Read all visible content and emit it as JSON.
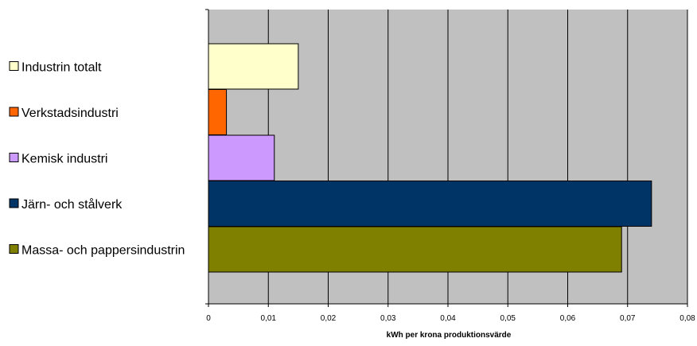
{
  "chart_data": {
    "type": "bar",
    "orientation": "horizontal",
    "xlabel": "kWh per krona produktionsvärde",
    "ylabel": "",
    "xlim": [
      0,
      0.08
    ],
    "x_ticks": [
      "0",
      "0,01",
      "0,02",
      "0,03",
      "0,04",
      "0,05",
      "0,06",
      "0,07",
      "0,08"
    ],
    "grid": true,
    "plot_background": "#c0c0c0",
    "legend_position": "left",
    "categories_top_to_bottom": [
      "Industrin totalt",
      "Verkstadsindustri",
      "Kemisk industri",
      "Järn- och stålverk",
      "Massa- och pappersindustrin"
    ],
    "series": [
      {
        "category": "Industrin totalt",
        "value": 0.015,
        "color": "#ffffcc"
      },
      {
        "category": "Verkstadsindustri",
        "value": 0.003,
        "color": "#ff6600"
      },
      {
        "category": "Kemisk industri",
        "value": 0.011,
        "color": "#cc99ff"
      },
      {
        "category": "Järn- och stålverk",
        "value": 0.074,
        "color": "#003366"
      },
      {
        "category": "Massa- och pappersindustrin",
        "value": 0.069,
        "color": "#808000"
      }
    ]
  }
}
